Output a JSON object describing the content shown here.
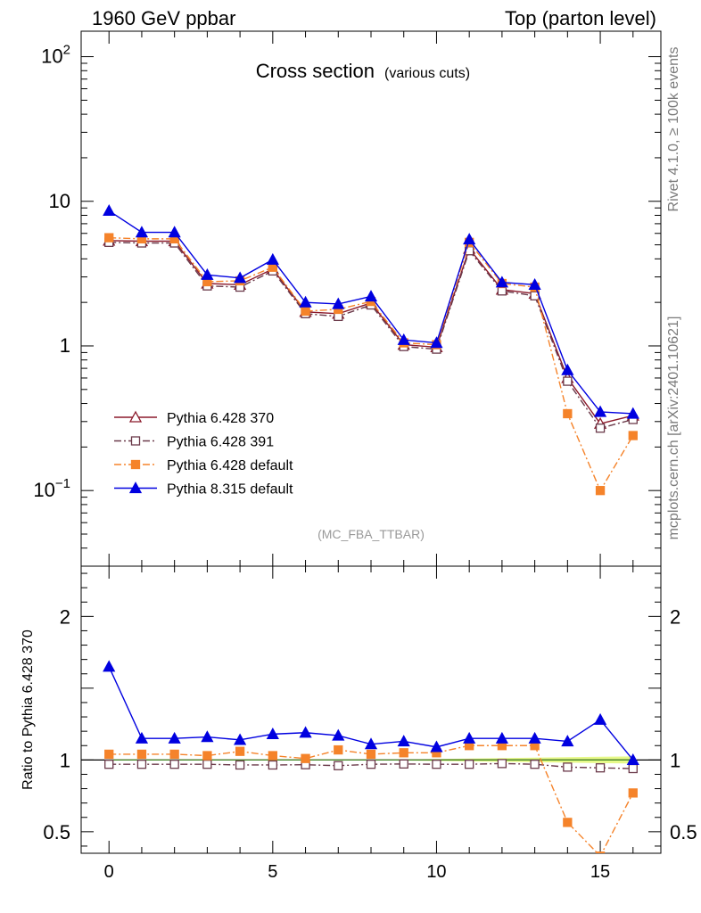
{
  "header": {
    "left": "1960 GeV ppbar",
    "right": "Top (parton level)"
  },
  "side": {
    "version": "Rivet 4.1.0, ≥ 100k events",
    "site": "mcplots.cern.ch [arXiv:2401.10621]"
  },
  "colors": {
    "p370": "#8b1a2b",
    "p391": "#6b3a4a",
    "pdefault": "#f5832a",
    "p8": "#0000e0",
    "band": "#d6f53a"
  },
  "chart_data": [
    {
      "type": "line",
      "title": "Cross section",
      "subtitle": "(various cuts)",
      "annotation": "(MC_FBA_TTBAR)",
      "yscale": "log",
      "ylim": [
        0.03,
        150
      ],
      "xlim": [
        -0.85,
        16.85
      ],
      "yticks": [
        {
          "value": 0.1,
          "label": "10",
          "sup": "−1"
        },
        {
          "value": 1,
          "label": "1",
          "sup": ""
        },
        {
          "value": 10,
          "label": "10",
          "sup": ""
        },
        {
          "value": 100,
          "label": "10",
          "sup": "2"
        }
      ],
      "legend_position": "bottom-left",
      "x": [
        0,
        1,
        2,
        3,
        4,
        5,
        6,
        7,
        8,
        9,
        10,
        11,
        12,
        13,
        14,
        15,
        16
      ],
      "series": [
        {
          "name": "Pythia 6.428 370",
          "key": "p370",
          "marker": "triangle-open",
          "dash": "",
          "values": [
            5.35,
            5.3,
            5.3,
            2.7,
            2.65,
            3.4,
            1.72,
            1.67,
            1.98,
            1.02,
            0.98,
            4.7,
            2.45,
            2.3,
            0.6,
            0.29,
            0.33
          ]
        },
        {
          "name": "Pythia 6.428 391",
          "key": "p391",
          "marker": "square-open",
          "dash": "8,3,2,3",
          "values": [
            5.2,
            5.15,
            5.15,
            2.6,
            2.55,
            3.3,
            1.67,
            1.6,
            1.92,
            0.99,
            0.95,
            4.55,
            2.4,
            2.22,
            0.57,
            0.27,
            0.31
          ]
        },
        {
          "name": "Pythia 6.428 default",
          "key": "pdefault",
          "marker": "square-filled",
          "dash": "8,3,2,3",
          "values": [
            5.6,
            5.5,
            5.5,
            2.78,
            2.82,
            3.5,
            1.74,
            1.79,
            2.03,
            1.05,
            1.02,
            5.2,
            2.7,
            2.55,
            0.34,
            0.1,
            0.24
          ]
        },
        {
          "name": "Pythia 8.315 default",
          "key": "p8",
          "marker": "triangle-filled",
          "dash": "",
          "values": [
            8.6,
            6.1,
            6.1,
            3.1,
            2.95,
            3.95,
            2.0,
            1.95,
            2.2,
            1.1,
            1.05,
            5.45,
            2.75,
            2.65,
            0.68,
            0.35,
            0.34
          ]
        }
      ]
    },
    {
      "type": "line",
      "ylabel": "Ratio to Pythia 6.428 370",
      "ylim": [
        0.35,
        2.35
      ],
      "xlim": [
        -0.85,
        16.85
      ],
      "xticks": [
        0,
        5,
        10,
        15
      ],
      "yticks": [
        0.5,
        1,
        2
      ],
      "x": [
        0,
        1,
        2,
        3,
        4,
        5,
        6,
        7,
        8,
        9,
        10,
        11,
        12,
        13,
        14,
        15,
        16
      ],
      "series": [
        {
          "name": "Pythia 6.428 391",
          "key": "p391",
          "marker": "square-open",
          "dash": "8,3,2,3",
          "values": [
            0.97,
            0.97,
            0.97,
            0.97,
            0.965,
            0.965,
            0.967,
            0.96,
            0.97,
            0.972,
            0.97,
            0.97,
            0.975,
            0.97,
            0.95,
            0.945,
            0.94
          ]
        },
        {
          "name": "Pythia 6.428 default",
          "key": "pdefault",
          "marker": "square-filled",
          "dash": "8,3,2,3",
          "values": [
            1.04,
            1.04,
            1.04,
            1.03,
            1.06,
            1.03,
            1.01,
            1.07,
            1.04,
            1.05,
            1.05,
            1.1,
            1.1,
            1.1,
            0.565,
            0.33,
            0.77
          ]
        },
        {
          "name": "Pythia 8.315 default",
          "key": "p8",
          "marker": "triangle-filled",
          "dash": "",
          "values": [
            1.65,
            1.15,
            1.15,
            1.16,
            1.14,
            1.18,
            1.19,
            1.17,
            1.11,
            1.13,
            1.09,
            1.15,
            1.15,
            1.15,
            1.13,
            1.28,
            1.0
          ]
        }
      ]
    }
  ]
}
